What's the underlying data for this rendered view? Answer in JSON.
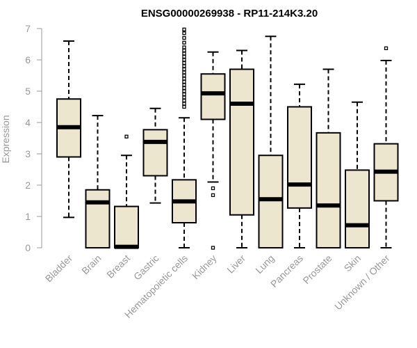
{
  "chart_data": {
    "type": "boxplot",
    "title": "ENSG00000269938 - RP11-214K3.20",
    "xlabel": "",
    "ylabel": "Expression",
    "ylim": [
      0,
      7
    ],
    "yticks": [
      0,
      1,
      2,
      3,
      4,
      5,
      6,
      7
    ],
    "colors": {
      "box_fill": "#ede6cf",
      "axis": "#999999",
      "stroke": "#000000"
    },
    "categories": [
      "Bladder",
      "Brain",
      "Breast",
      "Gastric",
      "Hematopoietic cells",
      "Kidney",
      "Liver",
      "Lung",
      "Pancreas",
      "Prostate",
      "Skin",
      "Unknown / Other"
    ],
    "series": [
      {
        "name": "Bladder",
        "whisker_low": 0.97,
        "q1": 2.9,
        "median": 3.85,
        "q3": 4.75,
        "whisker_high": 6.6,
        "outliers": []
      },
      {
        "name": "Brain",
        "whisker_low": 0.0,
        "q1": 0.0,
        "median": 1.45,
        "q3": 1.85,
        "whisker_high": 4.22,
        "outliers": []
      },
      {
        "name": "Breast",
        "whisker_low": 0.0,
        "q1": 0.0,
        "median": 0.03,
        "q3": 1.32,
        "whisker_high": 2.95,
        "outliers": [
          3.55
        ]
      },
      {
        "name": "Gastric",
        "whisker_low": 1.43,
        "q1": 2.3,
        "median": 3.38,
        "q3": 3.77,
        "whisker_high": 4.45,
        "outliers": []
      },
      {
        "name": "Hematopoietic cells",
        "whisker_low": 0.0,
        "q1": 0.8,
        "median": 1.48,
        "q3": 2.17,
        "whisker_high": 4.15,
        "outliers": [
          4.5,
          4.6,
          4.7,
          4.8,
          4.9,
          5.0,
          5.1,
          5.2,
          5.3,
          5.4,
          5.5,
          5.6,
          5.7,
          5.8,
          5.9,
          6.0,
          6.1,
          6.2,
          6.3,
          6.4,
          6.55,
          6.7,
          6.85,
          6.97
        ]
      },
      {
        "name": "Kidney",
        "whisker_low": 2.1,
        "q1": 4.1,
        "median": 4.93,
        "q3": 5.55,
        "whisker_high": 6.25,
        "outliers": [
          1.9,
          1.68,
          0.0
        ]
      },
      {
        "name": "Liver",
        "whisker_low": 0.0,
        "q1": 1.05,
        "median": 4.6,
        "q3": 5.7,
        "whisker_high": 6.3,
        "outliers": []
      },
      {
        "name": "Lung",
        "whisker_low": 0.0,
        "q1": 0.0,
        "median": 1.55,
        "q3": 2.95,
        "whisker_high": 6.75,
        "outliers": []
      },
      {
        "name": "Pancreas",
        "whisker_low": 0.0,
        "q1": 1.27,
        "median": 2.02,
        "q3": 4.5,
        "whisker_high": 5.22,
        "outliers": []
      },
      {
        "name": "Prostate",
        "whisker_low": 0.0,
        "q1": 0.0,
        "median": 1.35,
        "q3": 3.67,
        "whisker_high": 5.7,
        "outliers": []
      },
      {
        "name": "Skin",
        "whisker_low": 0.0,
        "q1": 0.0,
        "median": 0.72,
        "q3": 2.48,
        "whisker_high": 4.65,
        "outliers": []
      },
      {
        "name": "Unknown / Other",
        "whisker_low": 0.0,
        "q1": 1.5,
        "median": 2.43,
        "q3": 3.32,
        "whisker_high": 5.98,
        "outliers": [
          6.37
        ]
      }
    ]
  }
}
